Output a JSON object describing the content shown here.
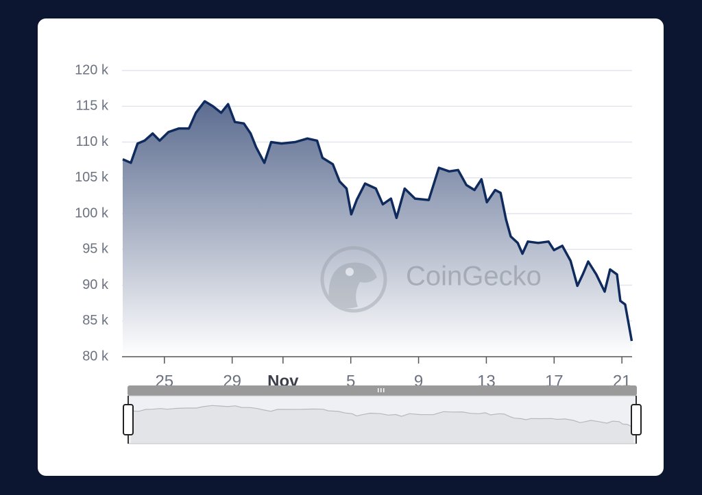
{
  "chart_data": {
    "type": "area",
    "watermark": "CoinGecko",
    "x": [
      22.54,
      23.02,
      23.42,
      23.83,
      24.31,
      24.72,
      25.24,
      25.85,
      26.45,
      26.86,
      27.38,
      27.87,
      28.35,
      28.76,
      29.16,
      29.69,
      30.09,
      30.41,
      30.9,
      31.3,
      31.91,
      32.72,
      33.44,
      34.01,
      34.33,
      34.94,
      35.34,
      35.75,
      36.03,
      36.35,
      36.84,
      37.48,
      37.89,
      38.37,
      38.7,
      39.18,
      39.79,
      40.6,
      41.2,
      41.81,
      42.33,
      42.82,
      43.3,
      43.71,
      44.03,
      44.52,
      44.84,
      45.16,
      45.44,
      45.85,
      46.13,
      46.45,
      47.06,
      47.67,
      47.99,
      48.48,
      48.97,
      49.37,
      49.69,
      50.01,
      50.49,
      50.98,
      51.3,
      51.71,
      51.91,
      52.19,
      52.58
    ],
    "values": [
      107600,
      107100,
      109800,
      110200,
      111200,
      110200,
      111400,
      111900,
      111900,
      114100,
      115700,
      115000,
      114100,
      115300,
      112800,
      112600,
      111200,
      109300,
      107100,
      110000,
      109800,
      110000,
      110500,
      110200,
      107800,
      106900,
      104500,
      103500,
      99900,
      101900,
      104200,
      103500,
      101300,
      102100,
      99400,
      103500,
      102100,
      101900,
      106400,
      105900,
      106100,
      104000,
      103300,
      104800,
      101600,
      103300,
      102900,
      99200,
      96800,
      95900,
      94400,
      96100,
      95900,
      96100,
      94900,
      95500,
      93400,
      89900,
      91500,
      93300,
      91500,
      89100,
      92200,
      91500,
      87800,
      87300,
      82200
    ],
    "color": "#0f2a5c",
    "xlim": [
      22.5,
      52.6
    ],
    "xticks": [
      {
        "value": 25,
        "label": "25"
      },
      {
        "value": 29,
        "label": "29"
      },
      {
        "value": 32,
        "label": "Nov"
      },
      {
        "value": 36,
        "label": "5"
      },
      {
        "value": 40,
        "label": "9"
      },
      {
        "value": 44,
        "label": "13"
      },
      {
        "value": 48,
        "label": "17"
      },
      {
        "value": 52,
        "label": "21"
      }
    ],
    "ylim": [
      80000,
      120000
    ],
    "yticks": [
      {
        "value": 80000,
        "label": "80 k"
      },
      {
        "value": 85000,
        "label": "85 k"
      },
      {
        "value": 90000,
        "label": "90 k"
      },
      {
        "value": 95000,
        "label": "95 k"
      },
      {
        "value": 100000,
        "label": "100 k"
      },
      {
        "value": 105000,
        "label": "105 k"
      },
      {
        "value": 110000,
        "label": "110 k"
      },
      {
        "value": 115000,
        "label": "115 k"
      },
      {
        "value": 120000,
        "label": "120 k"
      }
    ],
    "grid": true
  }
}
